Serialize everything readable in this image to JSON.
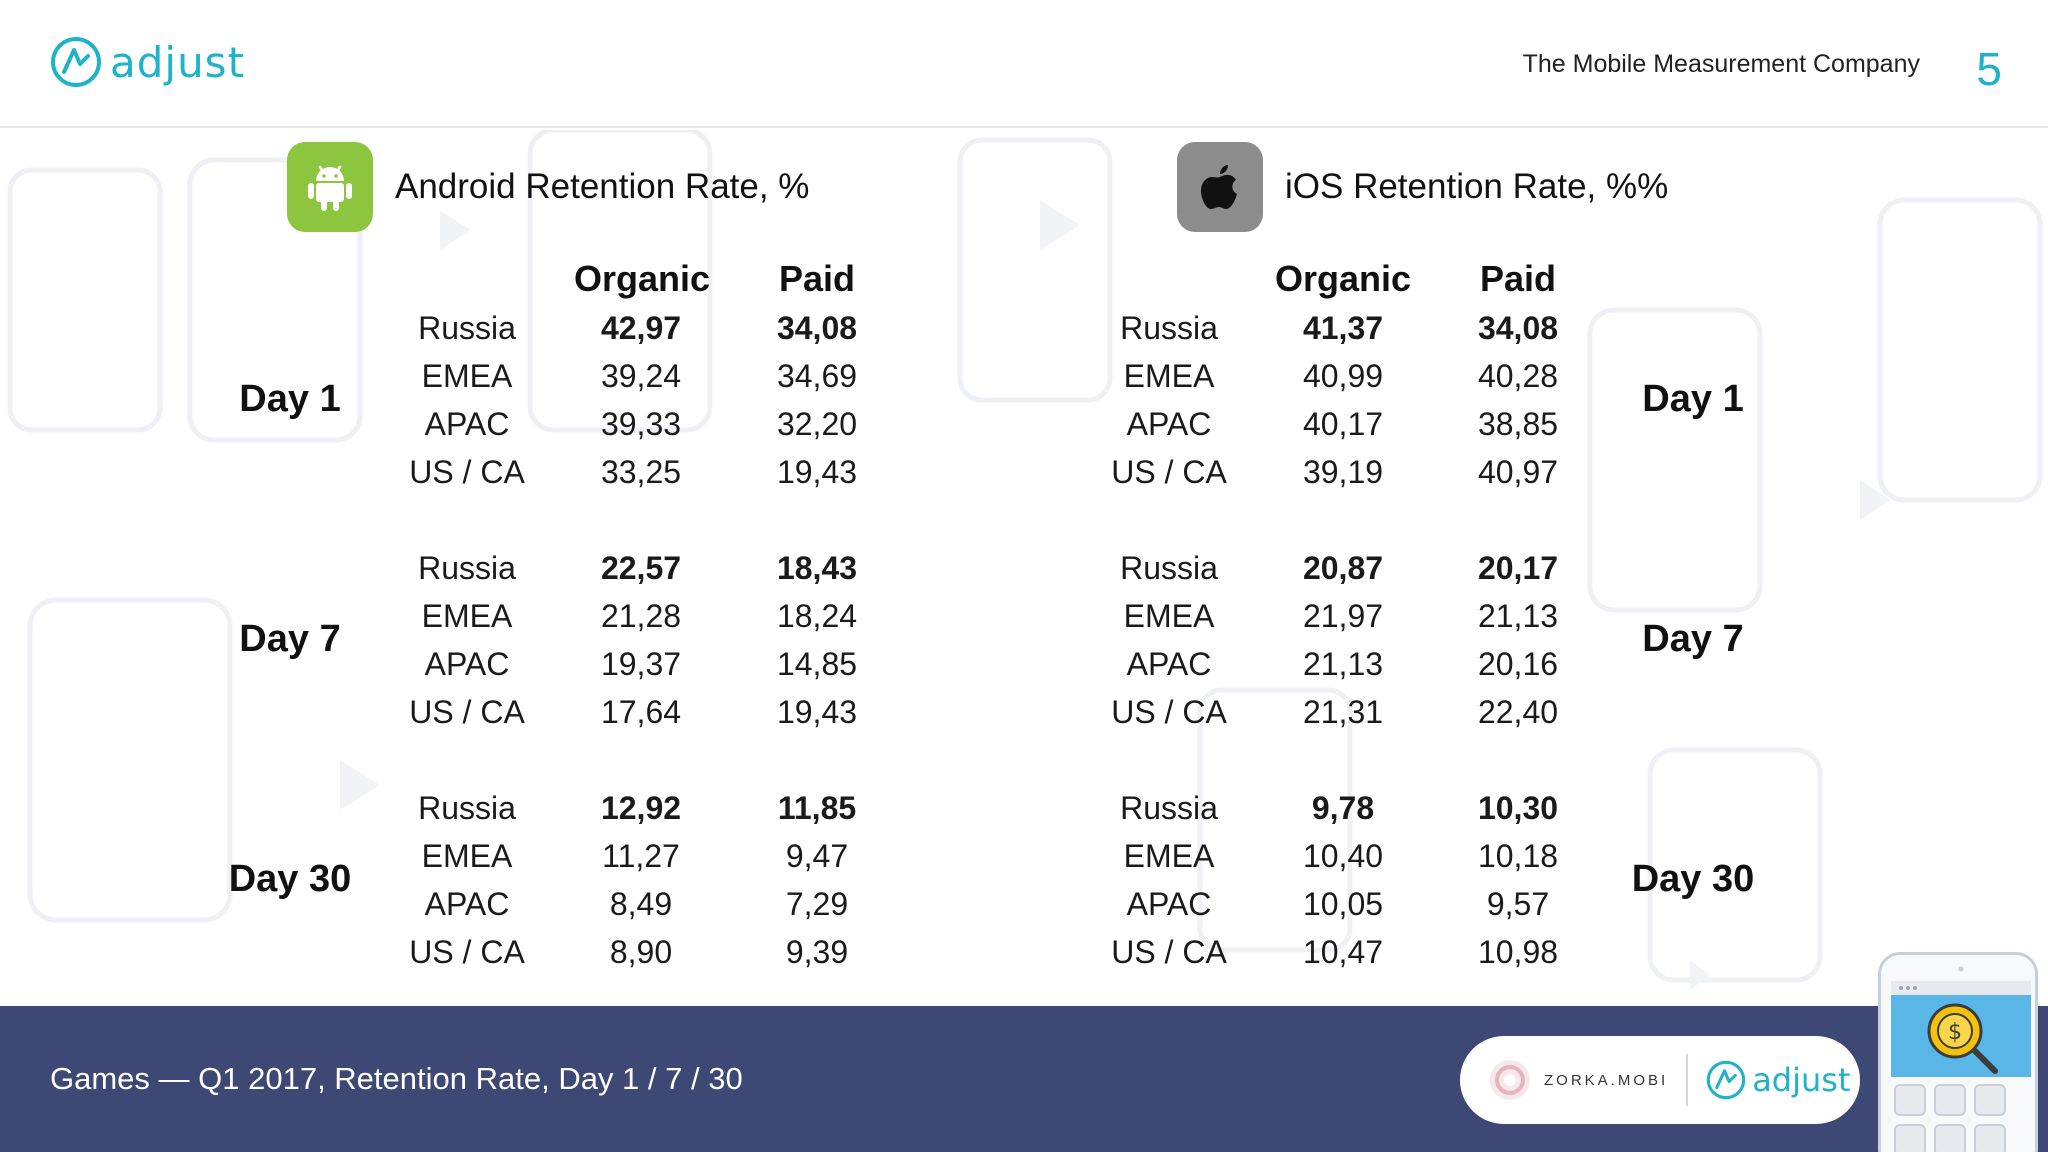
{
  "header": {
    "logo_text": "adjust",
    "tagline": "The Mobile Measurement Company",
    "page_number": "5"
  },
  "android": {
    "title": "Android Retention Rate, %",
    "col_organic": "Organic",
    "col_paid": "Paid",
    "groups": [
      {
        "day": "Day 1",
        "rows": [
          {
            "region": "Russia",
            "organic": "42,97",
            "paid": "34,08",
            "bold": true
          },
          {
            "region": "EMEA",
            "organic": "39,24",
            "paid": "34,69",
            "bold": false
          },
          {
            "region": "APAC",
            "organic": "39,33",
            "paid": "32,20",
            "bold": false
          },
          {
            "region": "US /  CA",
            "organic": "33,25",
            "paid": "19,43",
            "bold": false
          }
        ]
      },
      {
        "day": "Day 7",
        "rows": [
          {
            "region": "Russia",
            "organic": "22,57",
            "paid": "18,43",
            "bold": true
          },
          {
            "region": "EMEA",
            "organic": "21,28",
            "paid": "18,24",
            "bold": false
          },
          {
            "region": "APAC",
            "organic": "19,37",
            "paid": "14,85",
            "bold": false
          },
          {
            "region": "US /  CA",
            "organic": "17,64",
            "paid": "19,43",
            "bold": false
          }
        ]
      },
      {
        "day": "Day 30",
        "rows": [
          {
            "region": "Russia",
            "organic": "12,92",
            "paid": "11,85",
            "bold": true
          },
          {
            "region": "EMEA",
            "organic": "11,27",
            "paid": "9,47",
            "bold": false
          },
          {
            "region": "APAC",
            "organic": "8,49",
            "paid": "7,29",
            "bold": false
          },
          {
            "region": "US /  CA",
            "organic": "8,90",
            "paid": "9,39",
            "bold": false
          }
        ]
      }
    ]
  },
  "ios": {
    "title": "iOS Retention Rate, %%",
    "col_organic": "Organic",
    "col_paid": "Paid",
    "groups": [
      {
        "day": "Day 1",
        "rows": [
          {
            "region": "Russia",
            "organic": "41,37",
            "paid": "34,08",
            "bold": true
          },
          {
            "region": "EMEA",
            "organic": "40,99",
            "paid": "40,28",
            "bold": false
          },
          {
            "region": "APAC",
            "organic": "40,17",
            "paid": "38,85",
            "bold": false
          },
          {
            "region": "US /  CA",
            "organic": "39,19",
            "paid": "40,97",
            "bold": false
          }
        ]
      },
      {
        "day": "Day 7",
        "rows": [
          {
            "region": "Russia",
            "organic": "20,87",
            "paid": "20,17",
            "bold": true
          },
          {
            "region": "EMEA",
            "organic": "21,97",
            "paid": "21,13",
            "bold": false
          },
          {
            "region": "APAC",
            "organic": "21,13",
            "paid": "20,16",
            "bold": false
          },
          {
            "region": "US /  CA",
            "organic": "21,31",
            "paid": "22,40",
            "bold": false
          }
        ]
      },
      {
        "day": "Day 30",
        "rows": [
          {
            "region": "Russia",
            "organic": "9,78",
            "paid": "10,30",
            "bold": true
          },
          {
            "region": "EMEA",
            "organic": "10,40",
            "paid": "10,18",
            "bold": false
          },
          {
            "region": "APAC",
            "organic": "10,05",
            "paid": "9,57",
            "bold": false
          },
          {
            "region": "US /  CA",
            "organic": "10,47",
            "paid": "10,98",
            "bold": false
          }
        ]
      }
    ]
  },
  "footer": {
    "caption": "Games — Q1 2017, Retention Rate, Day 1 / 7 / 30",
    "partner_text": "ZORKA.MOBI",
    "partner_logo_text": "adjust"
  },
  "icons": {
    "android": "android-icon",
    "apple": "apple-icon",
    "adjust": "adjust-logo-icon"
  },
  "colors": {
    "accent": "#1fb3c9",
    "footer_bg": "#3d4874",
    "android_green": "#8cc63f",
    "apple_gray": "#8c8c8c"
  }
}
